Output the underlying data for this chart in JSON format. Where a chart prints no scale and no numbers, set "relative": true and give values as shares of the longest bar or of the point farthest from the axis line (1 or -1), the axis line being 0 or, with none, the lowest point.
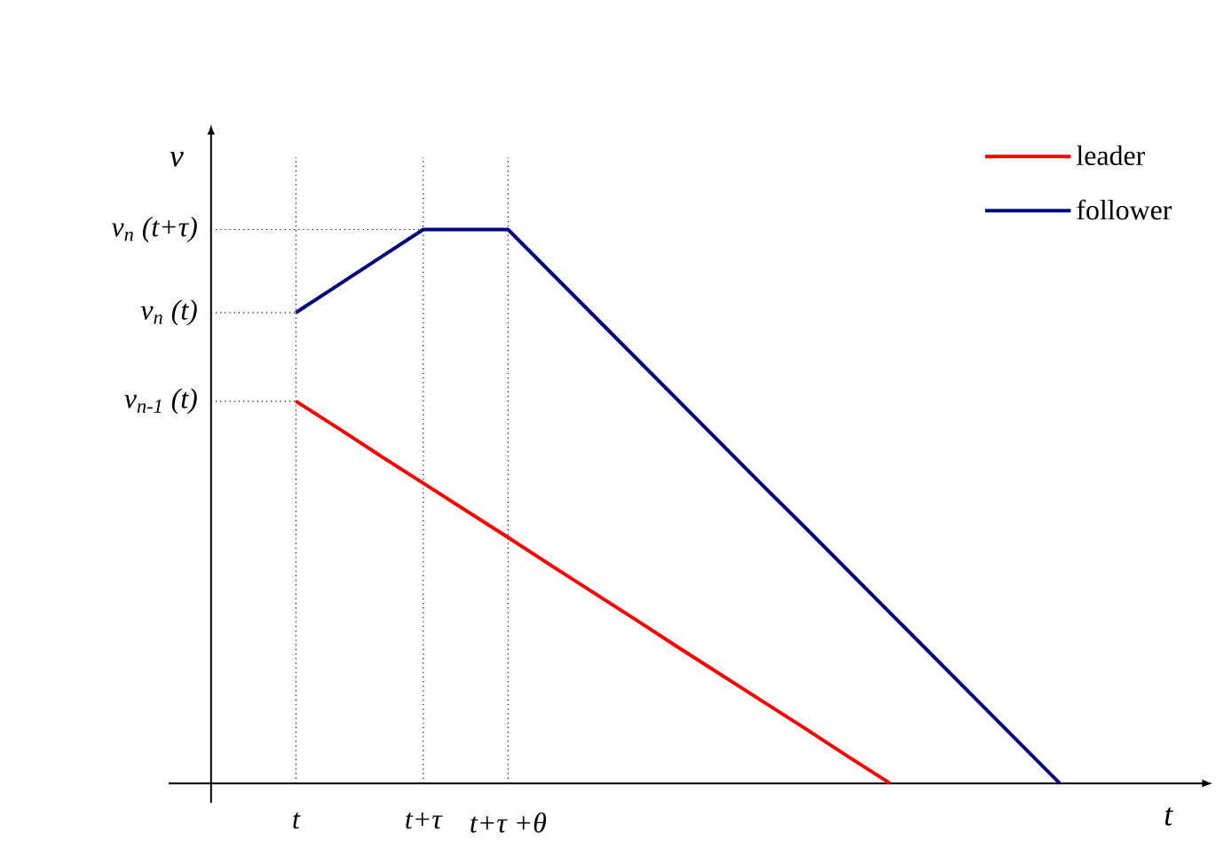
{
  "chart_data": {
    "type": "line",
    "xlabel": "t",
    "ylabel": "v",
    "relative": true,
    "legend": "top right",
    "grid": "x",
    "categories": [
      null,
      null,
      "t",
      null,
      null,
      "t+τ",
      null,
      "t+τ +θ",
      null,
      null,
      null,
      null,
      null,
      null,
      null,
      null,
      null,
      null,
      null,
      null,
      null,
      null,
      null,
      null
    ],
    "series": [
      {
        "name": "leader",
        "color": "#ff0000",
        "values": [
          null,
          null,
          0.69,
          0.641,
          0.591,
          0.542,
          0.493,
          0.444,
          0.394,
          0.345,
          0.296,
          0.246,
          0.197,
          0.148,
          0.099,
          0.049,
          0,
          null,
          null,
          null,
          null,
          null,
          null,
          null
        ]
      },
      {
        "name": "follower",
        "color": "#000080",
        "values": [
          null,
          null,
          0.85,
          0.9,
          0.95,
          1,
          1,
          1,
          0.923,
          0.846,
          0.769,
          0.692,
          0.615,
          0.538,
          0.462,
          0.385,
          0.308,
          0.231,
          0.154,
          0.077,
          0,
          null,
          null,
          null
        ]
      }
    ],
    "ref_lines": [
      {
        "axis": "y",
        "value": 1,
        "label": "v$_{n}$ (t+τ)",
        "line_style": "dotted",
        "color": "#000000"
      },
      {
        "axis": "y",
        "value": 0.85,
        "label": "v$_{n}$ (t)",
        "line_style": "dotted",
        "color": "#000000"
      },
      {
        "axis": "y",
        "value": 0.69,
        "label": "v$_{n-1}$ (t)",
        "line_style": "dotted",
        "color": "#000000"
      }
    ]
  }
}
